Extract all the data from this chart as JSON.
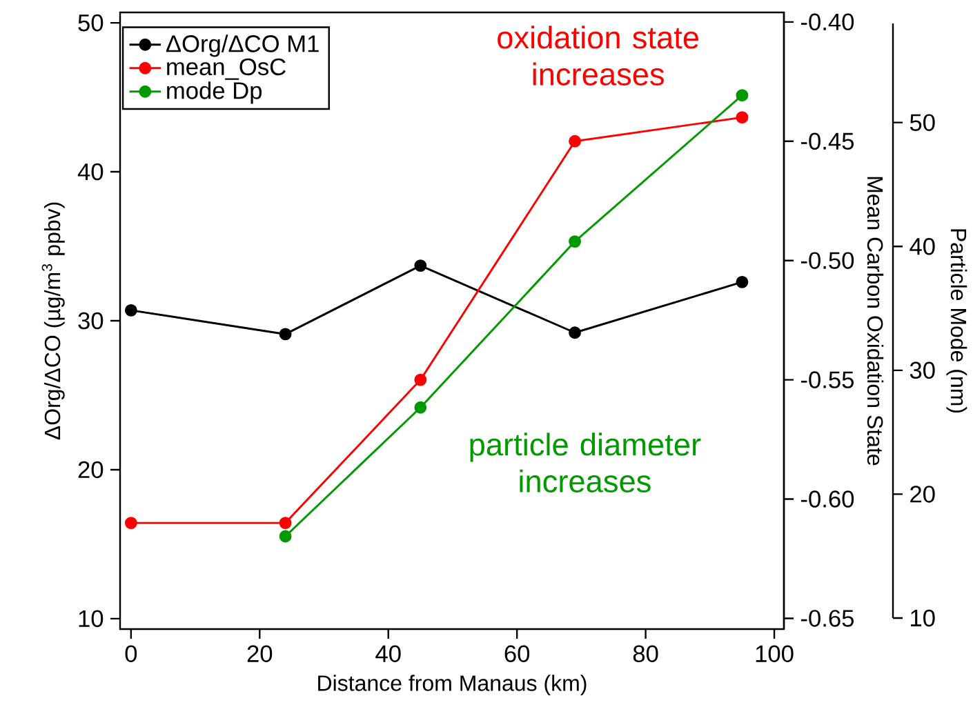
{
  "chart_data": {
    "type": "line",
    "xlabel": "Distance from Manaus (km)",
    "ylabel": "ΔOrg/ΔCO (µg/m$^{3}$ ppbv)",
    "y2label": "Mean Carbon Oxidation State",
    "y3label": "Particle Mode (nm)",
    "annotations": [
      "oxidation state increases",
      "particle diameter increases"
    ],
    "x": [
      0,
      24,
      45,
      69,
      95
    ],
    "xlim": [
      -1.7,
      101.5
    ],
    "xticks": [
      0,
      20,
      40,
      60,
      80,
      100
    ],
    "ylim": [
      9.3,
      50.7
    ],
    "yticks": [
      10,
      20,
      30,
      40,
      50
    ],
    "y2lim": [
      -0.6545,
      -0.396
    ],
    "y2ticks": [
      {
        "value": -0.65,
        "label": "-0.65"
      },
      {
        "value": -0.6,
        "label": "-0.60"
      },
      {
        "value": -0.55,
        "label": "-0.55"
      },
      {
        "value": -0.5,
        "label": "-0.50"
      },
      {
        "value": -0.45,
        "label": "-0.45"
      },
      {
        "value": -0.4,
        "label": "-0.40"
      }
    ],
    "y3lim": [
      10,
      58
    ],
    "y3ticks": [
      10,
      20,
      30,
      40,
      50
    ],
    "marker": "circle",
    "legend": "top left",
    "line_style": "solid",
    "series": [
      {
        "name": "ΔOrg/ΔCO M1",
        "color": "#000000",
        "values": [
          30.7,
          29.1,
          33.7,
          29.2,
          32.6
        ]
      },
      {
        "name": "mean_OsC",
        "color": "#ff0000",
        "axis": "y2",
        "values": [
          -0.61,
          -0.61,
          -0.55,
          -0.45,
          -0.44
        ]
      },
      {
        "name": "mode Dp",
        "color": "#009900",
        "axis": "y3",
        "x": [
          24,
          45,
          69,
          95
        ],
        "values": [
          16.6,
          27.0,
          40.4,
          52.2
        ]
      }
    ]
  }
}
